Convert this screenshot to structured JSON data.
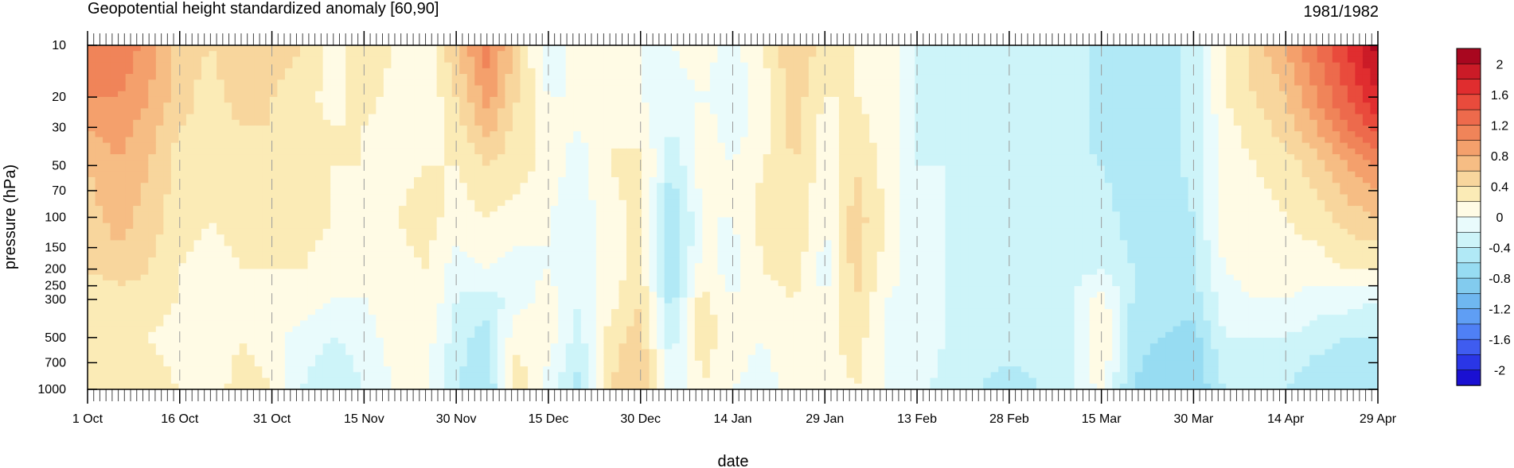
{
  "chart_data": {
    "type": "heatmap",
    "title": "Geopotential height standardized anomaly [60,90]",
    "period": "1981/1982",
    "xlabel": "date",
    "ylabel": "pressure (hPa)",
    "x_ticks": [
      "1 Oct",
      "16 Oct",
      "31 Oct",
      "15 Nov",
      "30 Nov",
      "15 Dec",
      "30 Dec",
      "14 Jan",
      "29 Jan",
      "13 Feb",
      "28 Feb",
      "15 Mar",
      "30 Mar",
      "14 Apr",
      "29 Apr"
    ],
    "y_ticks": [
      "10",
      "20",
      "30",
      "50",
      "70",
      "100",
      "150",
      "200",
      "250",
      "300",
      "500",
      "700",
      "1000"
    ],
    "y_scale": "log",
    "y_reversed": true,
    "colorbar": {
      "labels": [
        "2",
        "1.6",
        "1.2",
        "0.8",
        "0.4",
        "0",
        "-0.4",
        "-0.8",
        "-1.2",
        "-1.6",
        "-2"
      ],
      "levels": [
        -2.2,
        -2.0,
        -1.8,
        -1.6,
        -1.4,
        -1.2,
        -1.0,
        -0.8,
        -0.6,
        -0.4,
        -0.2,
        0.0,
        0.2,
        0.4,
        0.6,
        0.8,
        1.0,
        1.2,
        1.4,
        1.6,
        1.8,
        2.0,
        2.2
      ],
      "colors": [
        "#1a10d2",
        "#2a36e6",
        "#3f5cf0",
        "#4f80f5",
        "#5f9ef4",
        "#6fb7f0",
        "#82cbee",
        "#97dcf2",
        "#b1e9f6",
        "#cdf4f9",
        "#e9fbfc",
        "#fffbe5",
        "#fbebb6",
        "#f8d69d",
        "#f6bd84",
        "#f4a06c",
        "#f08459",
        "#ed6a4c",
        "#e94b3c",
        "#e02d2f",
        "#cb1b27",
        "#a8071f"
      ]
    },
    "columns": [
      {
        "date": "1 Oct",
        "values": [
          1.0,
          1.0,
          0.8,
          0.6,
          0.5,
          0.4,
          0.3,
          0.3,
          0.4
        ]
      },
      {
        "date": "6 Oct",
        "values": [
          1.2,
          1.0,
          0.9,
          0.8,
          0.7,
          0.5,
          0.3,
          0.3,
          0.4
        ]
      },
      {
        "date": "11 Oct",
        "values": [
          0.9,
          0.8,
          0.7,
          0.6,
          0.5,
          0.4,
          0.3,
          0.2,
          0.3
        ]
      },
      {
        "date": "16 Oct",
        "values": [
          0.5,
          0.5,
          0.4,
          0.3,
          0.3,
          0.2,
          0.2,
          0.1,
          0.2
        ]
      },
      {
        "date": "21 Oct",
        "values": [
          0.4,
          0.3,
          0.3,
          0.2,
          0.2,
          0.1,
          0.1,
          0.0,
          0.1
        ]
      },
      {
        "date": "26 Oct",
        "values": [
          0.6,
          0.5,
          0.4,
          0.4,
          0.3,
          0.2,
          0.2,
          0.2,
          0.3
        ]
      },
      {
        "date": "31 Oct",
        "values": [
          0.5,
          0.4,
          0.4,
          0.3,
          0.3,
          0.2,
          0.1,
          0.1,
          0.2
        ]
      },
      {
        "date": "5 Nov",
        "values": [
          0.4,
          0.3,
          0.3,
          0.4,
          0.3,
          0.2,
          0.1,
          -0.1,
          -0.2
        ]
      },
      {
        "date": "10 Nov",
        "values": [
          0.1,
          0.1,
          0.2,
          0.2,
          0.2,
          0.1,
          0.0,
          -0.2,
          -0.4
        ]
      },
      {
        "date": "15 Nov",
        "values": [
          0.4,
          0.3,
          0.2,
          0.2,
          0.1,
          0.1,
          0.0,
          -0.1,
          -0.2
        ]
      },
      {
        "date": "20 Nov",
        "values": [
          0.2,
          0.1,
          0.1,
          0.1,
          0.2,
          0.1,
          0.1,
          0.1,
          0.0
        ]
      },
      {
        "date": "25 Nov",
        "values": [
          0.0,
          0.0,
          0.1,
          0.2,
          0.3,
          0.2,
          0.2,
          0.1,
          0.1
        ]
      },
      {
        "date": "30 Nov",
        "values": [
          0.6,
          0.4,
          0.3,
          0.2,
          0.1,
          -0.1,
          -0.2,
          -0.3,
          -0.4
        ]
      },
      {
        "date": "5 Dec",
        "values": [
          1.1,
          0.9,
          0.7,
          0.4,
          0.2,
          0.0,
          -0.3,
          -0.5,
          -0.6
        ]
      },
      {
        "date": "10 Dec",
        "values": [
          0.5,
          0.4,
          0.3,
          0.3,
          0.1,
          -0.1,
          -0.1,
          0.2,
          0.3
        ]
      },
      {
        "date": "15 Dec",
        "values": [
          -0.2,
          0.0,
          0.1,
          0.1,
          0.0,
          0.0,
          0.1,
          0.1,
          -0.1
        ]
      },
      {
        "date": "20 Dec",
        "values": [
          0.1,
          0.0,
          0.0,
          -0.1,
          -0.1,
          -0.2,
          -0.2,
          -0.3,
          -0.5
        ]
      },
      {
        "date": "25 Dec",
        "values": [
          0.1,
          0.1,
          0.2,
          0.2,
          0.1,
          0.1,
          0.1,
          0.3,
          0.4
        ]
      },
      {
        "date": "30 Dec",
        "values": [
          0.0,
          0.0,
          0.1,
          0.3,
          0.3,
          0.3,
          0.4,
          0.5,
          0.6
        ]
      },
      {
        "date": "4 Jan",
        "values": [
          0.0,
          -0.1,
          -0.2,
          -0.4,
          -0.6,
          -0.7,
          -0.5,
          -0.3,
          -0.2
        ]
      },
      {
        "date": "9 Jan",
        "values": [
          0.1,
          0.0,
          0.1,
          0.1,
          0.0,
          0.1,
          0.3,
          0.3,
          0.2
        ]
      },
      {
        "date": "14 Jan",
        "values": [
          -0.1,
          -0.1,
          -0.1,
          0.0,
          0.0,
          -0.1,
          0.0,
          0.1,
          0.0
        ]
      },
      {
        "date": "19 Jan",
        "values": [
          0.2,
          0.1,
          0.1,
          0.2,
          0.3,
          0.2,
          0.1,
          0.0,
          -0.1
        ]
      },
      {
        "date": "24 Jan",
        "values": [
          0.6,
          0.5,
          0.5,
          0.4,
          0.4,
          0.3,
          0.2,
          0.2,
          0.1
        ]
      },
      {
        "date": "29 Jan",
        "values": [
          0.3,
          0.2,
          0.1,
          0.1,
          0.0,
          -0.1,
          0.0,
          0.1,
          0.1
        ]
      },
      {
        "date": "3 Feb",
        "values": [
          0.2,
          0.2,
          0.3,
          0.4,
          0.5,
          0.5,
          0.4,
          0.3,
          0.2
        ]
      },
      {
        "date": "8 Feb",
        "values": [
          0.2,
          0.1,
          0.1,
          0.1,
          0.2,
          0.1,
          0.0,
          0.0,
          0.0
        ]
      },
      {
        "date": "13 Feb",
        "values": [
          -0.2,
          -0.2,
          -0.2,
          -0.2,
          -0.2,
          -0.1,
          -0.1,
          -0.1,
          -0.1
        ]
      },
      {
        "date": "18 Feb",
        "values": [
          -0.3,
          -0.3,
          -0.3,
          -0.2,
          -0.2,
          -0.2,
          -0.2,
          -0.2,
          -0.3
        ]
      },
      {
        "date": "23 Feb",
        "values": [
          -0.3,
          -0.3,
          -0.4,
          -0.3,
          -0.3,
          -0.3,
          -0.3,
          -0.3,
          -0.4
        ]
      },
      {
        "date": "28 Feb",
        "values": [
          -0.3,
          -0.3,
          -0.3,
          -0.3,
          -0.3,
          -0.3,
          -0.2,
          -0.3,
          -0.5
        ]
      },
      {
        "date": "5 Mar",
        "values": [
          -0.4,
          -0.4,
          -0.4,
          -0.4,
          -0.3,
          -0.3,
          -0.3,
          -0.3,
          -0.4
        ]
      },
      {
        "date": "10 Mar",
        "values": [
          -0.3,
          -0.3,
          -0.3,
          -0.3,
          -0.3,
          -0.3,
          -0.2,
          -0.2,
          -0.3
        ]
      },
      {
        "date": "15 Mar",
        "values": [
          -0.5,
          -0.5,
          -0.5,
          -0.4,
          -0.3,
          -0.2,
          0.1,
          0.2,
          0.1
        ]
      },
      {
        "date": "20 Mar",
        "values": [
          -0.6,
          -0.6,
          -0.6,
          -0.5,
          -0.5,
          -0.4,
          -0.4,
          -0.5,
          -0.6
        ]
      },
      {
        "date": "25 Mar",
        "values": [
          -0.6,
          -0.6,
          -0.6,
          -0.6,
          -0.5,
          -0.5,
          -0.5,
          -0.6,
          -0.8
        ]
      },
      {
        "date": "30 Mar",
        "values": [
          -0.3,
          -0.3,
          -0.3,
          -0.3,
          -0.4,
          -0.4,
          -0.5,
          -0.7,
          -0.8
        ]
      },
      {
        "date": "4 Apr",
        "values": [
          0.2,
          0.2,
          0.1,
          0.1,
          0.1,
          0.0,
          -0.1,
          -0.2,
          -0.4
        ]
      },
      {
        "date": "9 Apr",
        "values": [
          0.5,
          0.4,
          0.3,
          0.2,
          0.1,
          0.1,
          0.0,
          -0.2,
          -0.3
        ]
      },
      {
        "date": "14 Apr",
        "values": [
          0.8,
          0.6,
          0.5,
          0.3,
          0.2,
          0.1,
          0.0,
          -0.2,
          -0.4
        ]
      },
      {
        "date": "19 Apr",
        "values": [
          1.2,
          1.0,
          0.8,
          0.5,
          0.3,
          0.1,
          -0.1,
          -0.3,
          -0.6
        ]
      },
      {
        "date": "24 Apr",
        "values": [
          1.6,
          1.4,
          1.2,
          0.8,
          0.5,
          0.2,
          -0.1,
          -0.4,
          -0.6
        ]
      },
      {
        "date": "29 Apr",
        "values": [
          2.1,
          1.8,
          1.5,
          1.0,
          0.6,
          0.2,
          -0.2,
          -0.4,
          -0.6
        ]
      }
    ],
    "levels_hPa": [
      10,
      20,
      30,
      50,
      100,
      200,
      300,
      500,
      1000
    ]
  }
}
